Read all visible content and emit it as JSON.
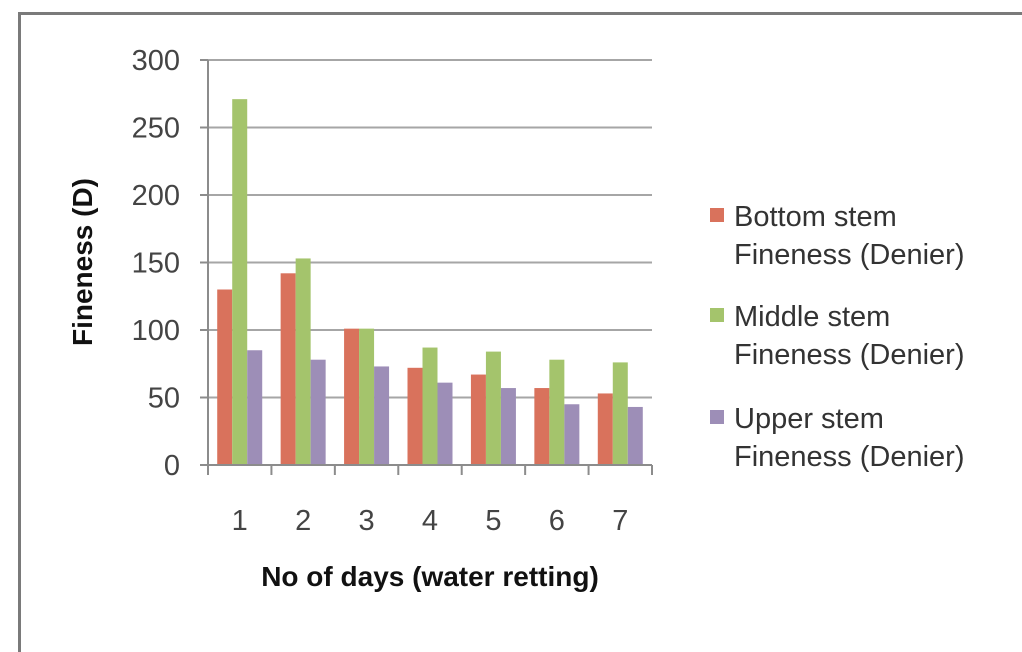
{
  "chart_data": {
    "type": "bar",
    "categories": [
      "1",
      "2",
      "3",
      "4",
      "5",
      "6",
      "7"
    ],
    "series": [
      {
        "name": "Bottom stem Fineness (Denier)",
        "legend_lines": [
          "Bottom stem",
          "Fineness (Denier)"
        ],
        "color": "#d9725c",
        "values": [
          130,
          142,
          101,
          72,
          67,
          57,
          53
        ]
      },
      {
        "name": "Middle stem Fineness (Denier)",
        "legend_lines": [
          "Middle stem",
          "Fineness (Denier)"
        ],
        "color": "#a4c46c",
        "values": [
          271,
          153,
          101,
          87,
          84,
          78,
          76
        ]
      },
      {
        "name": "Upper stem Fineness (Denier)",
        "legend_lines": [
          "Upper stem",
          "Fineness (Denier)"
        ],
        "color": "#9d8eb7",
        "values": [
          85,
          78,
          73,
          61,
          57,
          45,
          43
        ]
      }
    ],
    "ylim": [
      0,
      300
    ],
    "yticks": [
      0,
      50,
      100,
      150,
      200,
      250,
      300
    ],
    "xlabel": "No of days (water retting)",
    "ylabel": "Fineness (D)",
    "grid": true,
    "legend_position": "right"
  }
}
